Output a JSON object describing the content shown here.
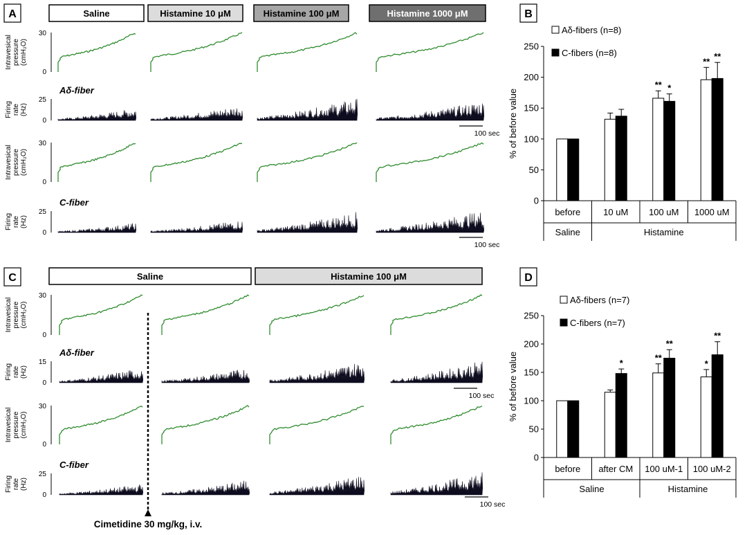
{
  "panels": {
    "A": {
      "letter": "A",
      "headers": [
        {
          "label": "Saline",
          "fill": "#ffffff",
          "text_color": "#000000"
        },
        {
          "label": "Histamine 10 μM",
          "fill": "#dcdcdc",
          "text_color": "#000000"
        },
        {
          "label": "Histamine 100 μM",
          "fill": "#a6a6a6",
          "text_color": "#000000"
        },
        {
          "label": "Histamine 1000 μM",
          "fill": "#6f6f6f",
          "text_color": "#ffffff"
        }
      ],
      "rows": [
        {
          "type": "pressure",
          "label": [
            "Intravesical",
            "pressure",
            "(cmH₂O)"
          ],
          "ticks": [
            "30",
            "0"
          ]
        },
        {
          "type": "firing",
          "fiber": "Aδ-fiber",
          "label": [
            "Firing",
            "rate",
            "(Hz)"
          ],
          "ticks": [
            "25",
            "0"
          ]
        },
        {
          "type": "pressure",
          "label": [
            "Intravesical",
            "pressure",
            "(cmH₂O)"
          ],
          "ticks": [
            "30",
            "0"
          ]
        },
        {
          "type": "firing",
          "fiber": "C-fiber",
          "label": [
            "Firing",
            "rate",
            "(Hz)"
          ],
          "ticks": [
            "25",
            "0"
          ]
        }
      ],
      "scalebars": [
        "100 sec",
        "100 sec"
      ],
      "firing_levels": [
        [
          0.45,
          0.55,
          0.8,
          0.7
        ],
        [
          0.35,
          0.45,
          0.75,
          0.8
        ]
      ]
    },
    "C": {
      "letter": "C",
      "headers": [
        {
          "label": "Saline",
          "fill": "#ffffff",
          "text_color": "#000000"
        },
        {
          "label": "Histamine 100 μM",
          "fill": "#dcdcdc",
          "text_color": "#000000"
        }
      ],
      "rows": [
        {
          "type": "pressure",
          "label": [
            "Intravesical",
            "pressure",
            "(cmH₂O)"
          ],
          "ticks": [
            "30",
            "0"
          ]
        },
        {
          "type": "firing",
          "fiber": "Aδ-fiber",
          "label": [
            "Firing",
            "rate",
            "(Hz)"
          ],
          "ticks": [
            "15",
            "0"
          ]
        },
        {
          "type": "pressure",
          "label": [
            "Intravesical",
            "pressure",
            "(cmH₂O)"
          ],
          "ticks": [
            "30",
            "0"
          ]
        },
        {
          "type": "firing",
          "fiber": "C-fiber",
          "label": [
            "Firing",
            "rate",
            "(Hz)"
          ],
          "ticks": [
            "25",
            "0"
          ]
        }
      ],
      "scalebars": [
        "100 sec",
        "100 sec"
      ],
      "annotation": "Cimetidine 30 mg/kg, i.v.",
      "firing_levels": [
        [
          0.55,
          0.55,
          0.8,
          0.8
        ],
        [
          0.4,
          0.55,
          0.75,
          0.85
        ]
      ]
    }
  },
  "chart_data": [
    {
      "panel": "B",
      "type": "bar",
      "ylabel": "% of before value",
      "ylim": [
        0,
        250
      ],
      "yticks": [
        0,
        50,
        100,
        150,
        200,
        250
      ],
      "categories": [
        "before",
        "10 uM",
        "100 uM",
        "1000 uM"
      ],
      "groups": [
        {
          "label": "Saline",
          "span": [
            0,
            0
          ]
        },
        {
          "label": "Histamine",
          "span": [
            1,
            3
          ]
        }
      ],
      "series": [
        {
          "name": "Aδ-fibers (n=8)",
          "color": "#ffffff",
          "values": [
            100,
            132,
            166,
            196
          ],
          "errors": [
            0,
            10,
            12,
            20
          ],
          "sig": [
            "",
            "",
            "**",
            "**"
          ]
        },
        {
          "name": "C-fibers (n=8)",
          "color": "#000000",
          "values": [
            100,
            137,
            161,
            198
          ],
          "errors": [
            0,
            11,
            12,
            26
          ],
          "sig": [
            "",
            "",
            "*",
            "**"
          ]
        }
      ]
    },
    {
      "panel": "D",
      "type": "bar",
      "ylabel": "% of before value",
      "ylim": [
        0,
        250
      ],
      "yticks": [
        0,
        50,
        100,
        150,
        200,
        250
      ],
      "categories": [
        "before",
        "after CM",
        "100 uM-1",
        "100 uM-2"
      ],
      "groups": [
        {
          "label": "Saline",
          "span": [
            0,
            1
          ]
        },
        {
          "label": "Histamine",
          "span": [
            2,
            3
          ]
        }
      ],
      "series": [
        {
          "name": "Aδ-fibers (n=7)",
          "color": "#ffffff",
          "values": [
            100,
            115,
            149,
            142
          ],
          "errors": [
            0,
            4,
            16,
            13
          ],
          "sig": [
            "",
            "",
            "**",
            "*"
          ]
        },
        {
          "name": "C-fibers (n=7)",
          "color": "#000000",
          "values": [
            100,
            148,
            175,
            181
          ],
          "errors": [
            0,
            8,
            15,
            23
          ],
          "sig": [
            "",
            "*",
            "**",
            "**"
          ]
        }
      ]
    }
  ],
  "colors": {
    "pressure_trace": "#2e8b2e",
    "firing_fill": "#0d0d1f"
  }
}
